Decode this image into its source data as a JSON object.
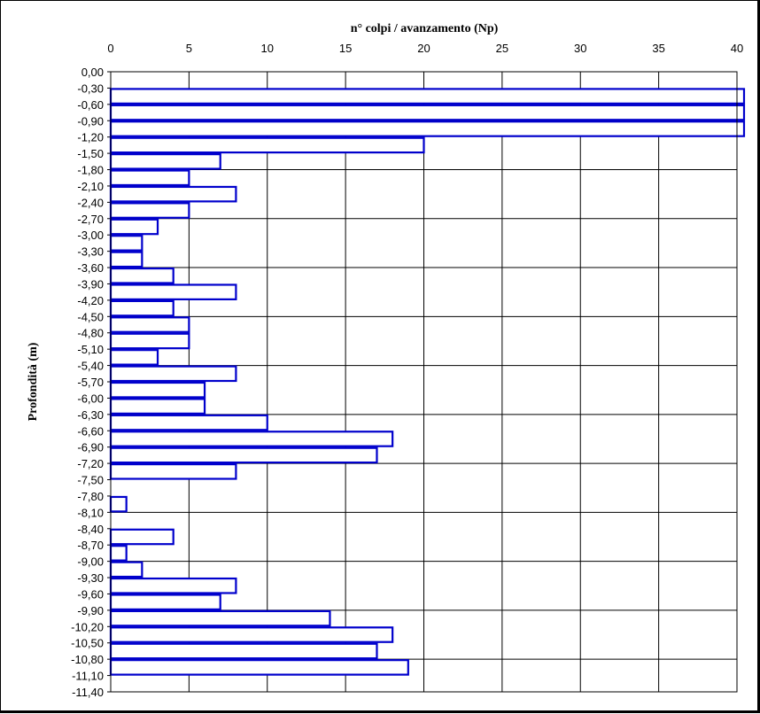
{
  "chart_data": {
    "type": "bar",
    "orientation": "horizontal",
    "xlabel": "n° colpi / avanzamento (Np)",
    "ylabel": "Profondità (m)",
    "xlim": [
      0,
      40
    ],
    "x_ticks": [
      0,
      5,
      10,
      15,
      20,
      25,
      30,
      35,
      40
    ],
    "x_tick_labels": [
      "0",
      "5",
      "10",
      "15",
      "20",
      "25",
      "30",
      "35",
      "40"
    ],
    "x_axis_position": "top",
    "grid": true,
    "depth_labels": [
      "0,00",
      "-0,30",
      "-0,60",
      "-0,90",
      "-1,20",
      "-1,50",
      "-1,80",
      "-2,10",
      "-2,40",
      "-2,70",
      "-3,00",
      "-3,30",
      "-3,60",
      "-3,90",
      "-4,20",
      "-4,50",
      "-4,80",
      "-5,10",
      "-5,40",
      "-5,70",
      "-6,00",
      "-6,30",
      "-6,60",
      "-6,90",
      "-7,20",
      "-7,50",
      "-7,80",
      "-8,10",
      "-8,40",
      "-8,70",
      "-9,00",
      "-9,30",
      "-9,60",
      "-9,90",
      "-10,20",
      "-10,50",
      "-10,80",
      "-11,10",
      "-11,40"
    ],
    "intervals": [
      {
        "from": 0.0,
        "to": -0.3,
        "value": 0
      },
      {
        "from": -0.3,
        "to": -0.6,
        "value": 40
      },
      {
        "from": -0.6,
        "to": -0.9,
        "value": 40
      },
      {
        "from": -0.9,
        "to": -1.2,
        "value": 40
      },
      {
        "from": -1.2,
        "to": -1.5,
        "value": 20
      },
      {
        "from": -1.5,
        "to": -1.8,
        "value": 7
      },
      {
        "from": -1.8,
        "to": -2.1,
        "value": 5
      },
      {
        "from": -2.1,
        "to": -2.4,
        "value": 8
      },
      {
        "from": -2.4,
        "to": -2.7,
        "value": 5
      },
      {
        "from": -2.7,
        "to": -3.0,
        "value": 3
      },
      {
        "from": -3.0,
        "to": -3.3,
        "value": 2
      },
      {
        "from": -3.3,
        "to": -3.6,
        "value": 2
      },
      {
        "from": -3.6,
        "to": -3.9,
        "value": 4
      },
      {
        "from": -3.9,
        "to": -4.2,
        "value": 8
      },
      {
        "from": -4.2,
        "to": -4.5,
        "value": 4
      },
      {
        "from": -4.5,
        "to": -4.8,
        "value": 5
      },
      {
        "from": -4.8,
        "to": -5.1,
        "value": 5
      },
      {
        "from": -5.1,
        "to": -5.4,
        "value": 3
      },
      {
        "from": -5.4,
        "to": -5.7,
        "value": 8
      },
      {
        "from": -5.7,
        "to": -6.0,
        "value": 6
      },
      {
        "from": -6.0,
        "to": -6.3,
        "value": 6
      },
      {
        "from": -6.3,
        "to": -6.6,
        "value": 10
      },
      {
        "from": -6.6,
        "to": -6.9,
        "value": 18
      },
      {
        "from": -6.9,
        "to": -7.2,
        "value": 17
      },
      {
        "from": -7.2,
        "to": -7.5,
        "value": 8
      },
      {
        "from": -7.5,
        "to": -7.8,
        "value": 0
      },
      {
        "from": -7.8,
        "to": -8.1,
        "value": 1
      },
      {
        "from": -8.1,
        "to": -8.4,
        "value": 0
      },
      {
        "from": -8.4,
        "to": -8.7,
        "value": 4
      },
      {
        "from": -8.7,
        "to": -9.0,
        "value": 1
      },
      {
        "from": -9.0,
        "to": -9.3,
        "value": 2
      },
      {
        "from": -9.3,
        "to": -9.6,
        "value": 8
      },
      {
        "from": -9.6,
        "to": -9.9,
        "value": 7
      },
      {
        "from": -9.9,
        "to": -10.2,
        "value": 14
      },
      {
        "from": -10.2,
        "to": -10.5,
        "value": 18
      },
      {
        "from": -10.5,
        "to": -10.8,
        "value": 17
      },
      {
        "from": -10.8,
        "to": -11.1,
        "value": 19
      }
    ],
    "bar_color": "#0000cc"
  }
}
